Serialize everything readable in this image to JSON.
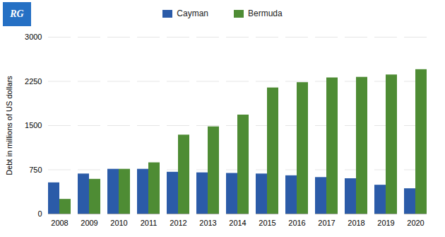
{
  "chart_data": {
    "type": "bar",
    "categories": [
      "2008",
      "2009",
      "2010",
      "2011",
      "2012",
      "2013",
      "2014",
      "2015",
      "2016",
      "2017",
      "2018",
      "2019",
      "2020"
    ],
    "series": [
      {
        "name": "Cayman",
        "color": "#2b5ba8",
        "values": [
          530,
          680,
          760,
          760,
          710,
          700,
          690,
          680,
          650,
          620,
          600,
          490,
          430
        ]
      },
      {
        "name": "Bermuda",
        "color": "#4e8c34",
        "values": [
          250,
          590,
          760,
          870,
          1340,
          1480,
          1680,
          2140,
          2230,
          2310,
          2320,
          2360,
          2450
        ]
      }
    ],
    "ylabel": "Debt in millions of US dollars",
    "ylim": [
      0,
      3000
    ],
    "yticks": [
      0,
      750,
      1500,
      2250,
      3000
    ],
    "grid": true,
    "legend": "top",
    "annotations": [
      {
        "text": "RG",
        "color": "#2570c4"
      }
    ]
  }
}
